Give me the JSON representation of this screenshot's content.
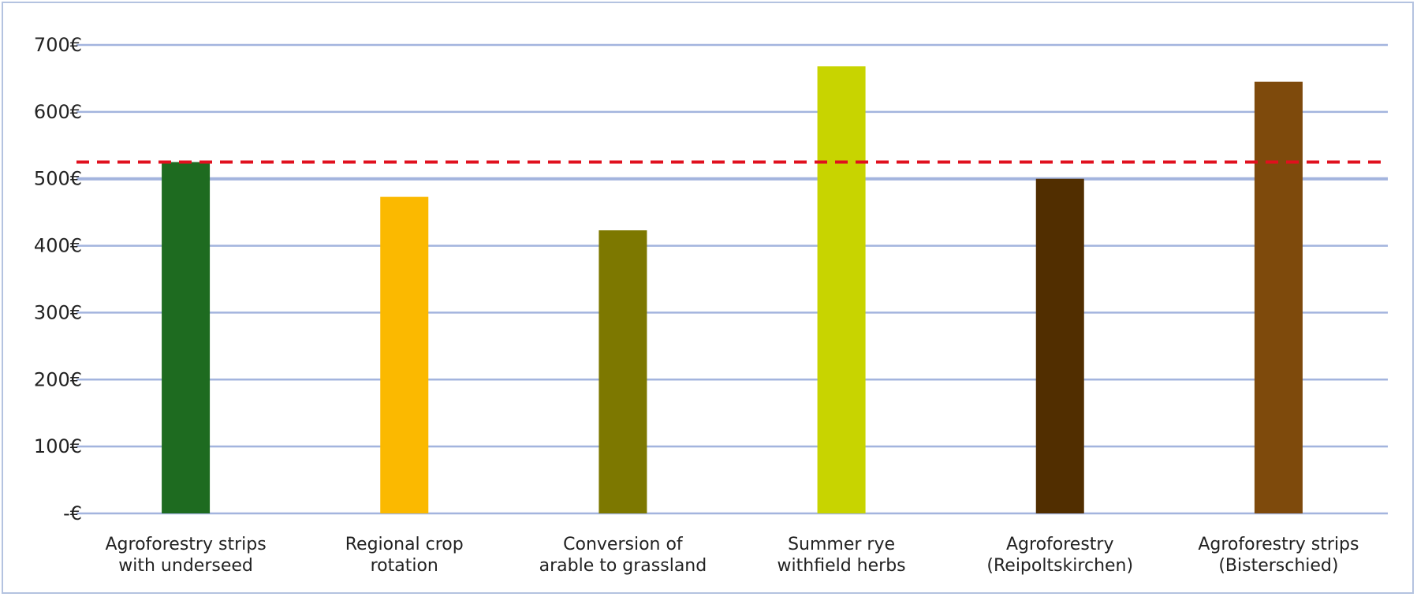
{
  "chart_data": {
    "type": "bar",
    "title": "",
    "xlabel": "",
    "ylabel": "",
    "ylim": [
      0,
      700
    ],
    "y_ticks": [
      {
        "value": 0,
        "label": "-€"
      },
      {
        "value": 100,
        "label": "100€"
      },
      {
        "value": 200,
        "label": "200€"
      },
      {
        "value": 300,
        "label": "300€"
      },
      {
        "value": 400,
        "label": "400€"
      },
      {
        "value": 500,
        "label": "500€"
      },
      {
        "value": 600,
        "label": "600€"
      },
      {
        "value": 700,
        "label": "700€"
      }
    ],
    "categories": [
      [
        "Agroforestry strips",
        "with underseed"
      ],
      [
        "Regional crop",
        "rotation"
      ],
      [
        "Conversion of",
        "arable to grassland"
      ],
      [
        "Summer rye",
        "withfield herbs"
      ],
      [
        "Agroforestry",
        "(Reipoltskirchen)"
      ],
      [
        "Agroforestry strips",
        "(Bisterschied)"
      ]
    ],
    "values": [
      525,
      473,
      423,
      668,
      500,
      645
    ],
    "bar_colors": [
      "#1e6b20",
      "#fbb900",
      "#7d7800",
      "#c8d400",
      "#512e00",
      "#7e4a0c"
    ],
    "reference_line": {
      "value": 525,
      "color": "#e0101e",
      "style": "dashed"
    },
    "grid": true,
    "grid_color": "#a3b4de",
    "legend": "none"
  }
}
